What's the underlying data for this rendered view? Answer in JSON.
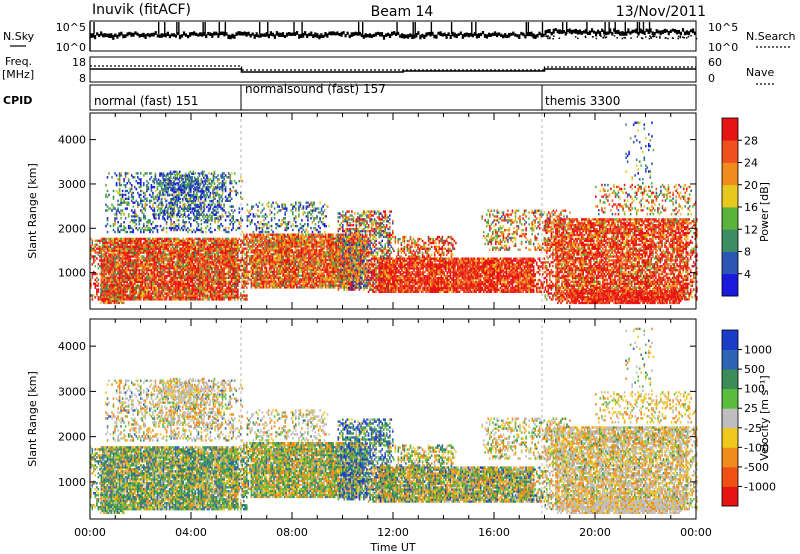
{
  "header": {
    "station": "Inuvik (fitACF)",
    "beam": "Beam 14",
    "date": "13/Nov/2011"
  },
  "top_panels": {
    "nsky_label": "N.Sky",
    "nsearch_label": "N.Search",
    "noise_ticks": [
      "10^5",
      "10^0"
    ],
    "freq_label": "Freq.",
    "freq_unit": "[MHz]",
    "freq_ticks": [
      "18",
      "8"
    ],
    "nave_label": "Nave",
    "nave_ticks": [
      "60",
      "0"
    ],
    "cpid_label": "CPID",
    "cpid_modes": [
      {
        "name": "normal (fast) 151",
        "start": "00:00",
        "end": "06:00"
      },
      {
        "name": "normalsound (fast) 157",
        "start": "06:00",
        "end": "18:00"
      },
      {
        "name": "themis 3300",
        "start": "18:00",
        "end": "24:00"
      }
    ]
  },
  "chart_data": [
    {
      "type": "heatmap",
      "title": "",
      "xlabel": "Time UT",
      "ylabel": "Slant Range [km]",
      "x_ticks": [
        "00:00",
        "04:00",
        "08:00",
        "12:00",
        "16:00",
        "20:00",
        "00:00"
      ],
      "xlim_hours": [
        0,
        24
      ],
      "y_ticks": [
        1000,
        2000,
        3000,
        4000
      ],
      "ylim": [
        180,
        4600
      ],
      "colorbar": {
        "label": "Power [dB]",
        "ticks": [
          4,
          8,
          12,
          16,
          20,
          24,
          28
        ],
        "range": [
          0,
          30
        ],
        "colors": [
          "#1a1adc",
          "#2d55b4",
          "#3c8c64",
          "#5ab43c",
          "#e6c81e",
          "#f08c1e",
          "#f0501e",
          "#e61414"
        ]
      },
      "echo_regions_summary": [
        {
          "time": "00:00-06:00",
          "range_km": "400-1700",
          "power_db": "16-28",
          "dominant": "red/orange"
        },
        {
          "time": "00:00-06:00",
          "range_km": "2000-3200",
          "power_db": "4-16",
          "dominant": "blue/green"
        },
        {
          "time": "06:00-11:00",
          "range_km": "700-1800",
          "power_db": "20-28",
          "dominant": "red/orange"
        },
        {
          "time": "11:00-18:00",
          "range_km": "600-1300",
          "power_db": "24-30",
          "dominant": "red"
        },
        {
          "time": "18:00-24:00",
          "range_km": "400-2200",
          "power_db": "20-30",
          "dominant": "red"
        }
      ]
    },
    {
      "type": "heatmap",
      "title": "",
      "xlabel": "Time UT",
      "ylabel": "Slant Range [km]",
      "x_ticks": [
        "00:00",
        "04:00",
        "08:00",
        "12:00",
        "16:00",
        "20:00",
        "00:00"
      ],
      "xlim_hours": [
        0,
        24
      ],
      "y_ticks": [
        1000,
        2000,
        3000,
        4000
      ],
      "ylim": [
        180,
        4600
      ],
      "colorbar": {
        "label": "Velocity [m s⁻¹]",
        "ticks": [
          "1000",
          "500",
          "100",
          "25",
          "-25",
          "-100",
          "-500",
          "-1000"
        ],
        "colors": [
          "#1a3cc8",
          "#2d64b4",
          "#3c8c5a",
          "#5abe3c",
          "#bebebe",
          "#f0c81e",
          "#f08c1e",
          "#f05014",
          "#e61414"
        ]
      },
      "echo_regions_summary": [
        {
          "time": "00:00-06:00",
          "range_km": "400-1700",
          "velocity": "mixed -100 to 100"
        },
        {
          "time": "00:00-06:00",
          "range_km": "2000-3200",
          "velocity": "-25 to 25 and orange"
        },
        {
          "time": "10:00-13:00",
          "range_km": "700-1800",
          "velocity": "500 to 1000 (blue)"
        },
        {
          "time": "18:00-24:00",
          "range_km": "400-1500",
          "velocity": "-25 to 25 (grey) and orange"
        }
      ]
    }
  ]
}
